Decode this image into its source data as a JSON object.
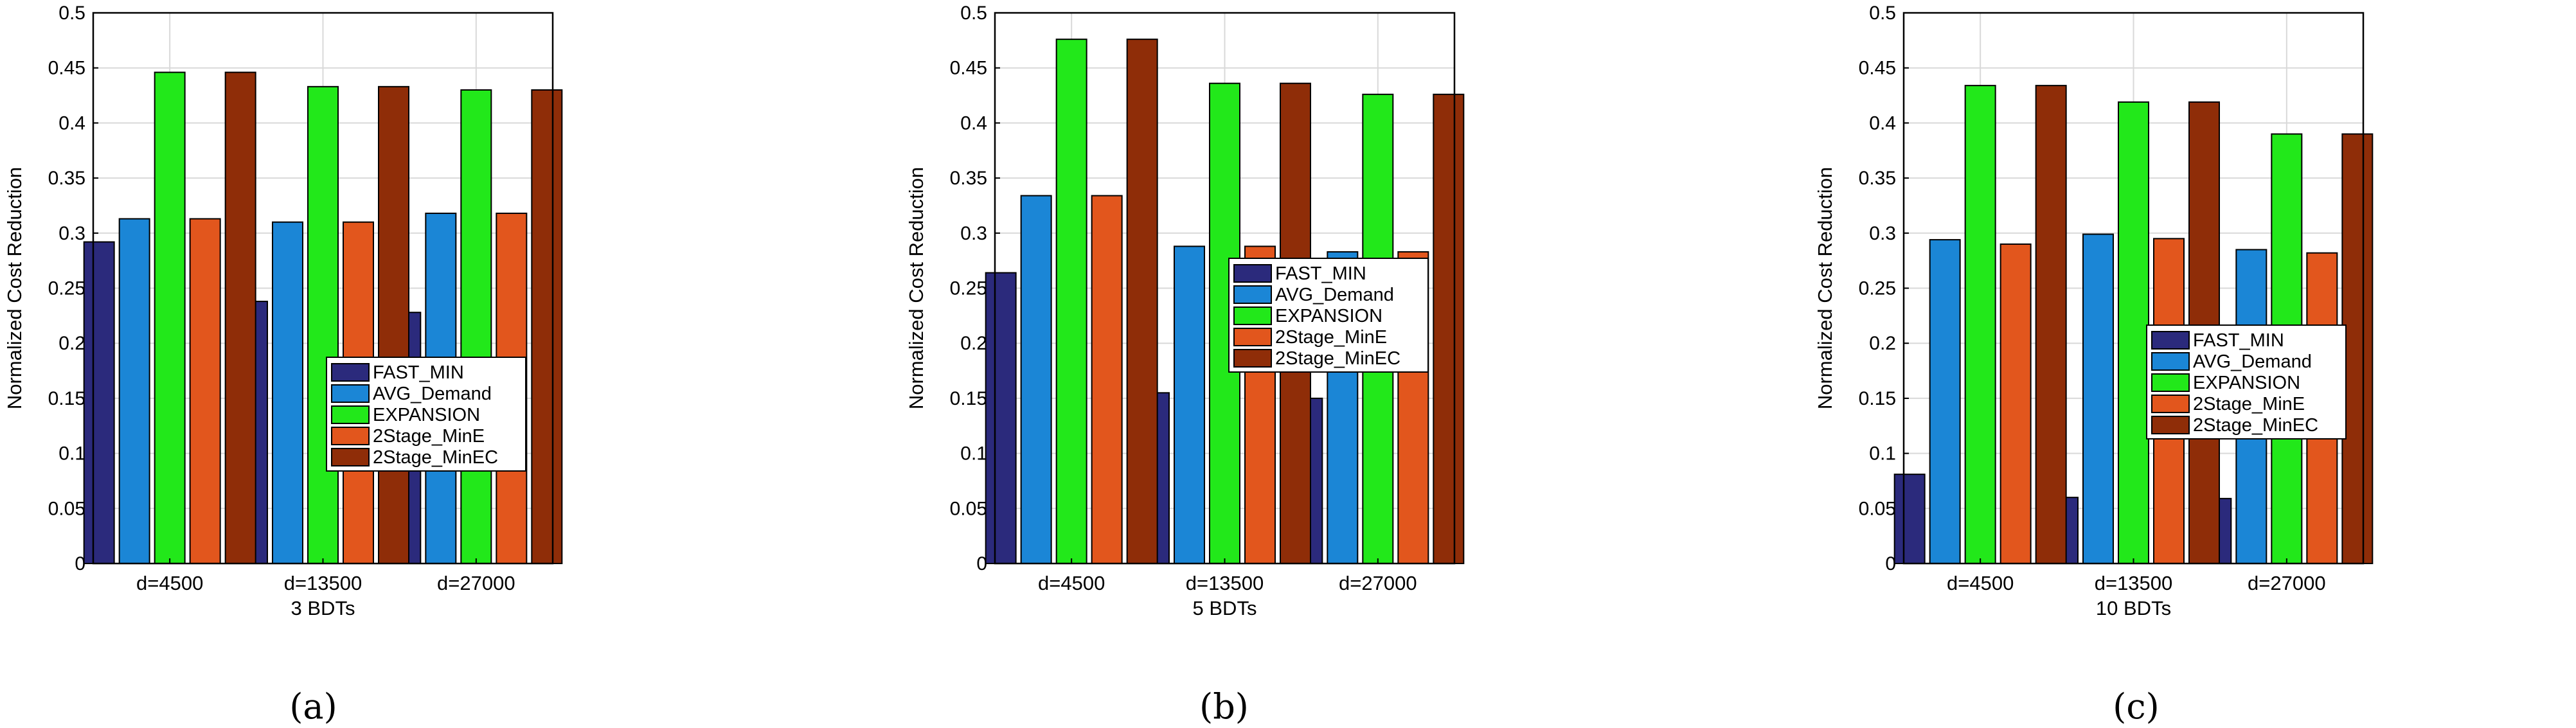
{
  "colors": {
    "FAST_MIN": "#2b2a7c",
    "AVG_Demand": "#1b86d6",
    "EXPANSION": "#22e81a",
    "2Stage_MinE": "#e2561d",
    "2Stage_MinEC": "#8f2d08",
    "grid": "#d9d9d9",
    "axis": "#000000"
  },
  "chart_data": [
    {
      "type": "bar",
      "panel_label": "(a)",
      "ylabel": "Normalized Cost Reduction",
      "xlabel": "3 BDTs",
      "categories": [
        "d=4500",
        "d=13500",
        "d=27000"
      ],
      "ylim": [
        0,
        0.5
      ],
      "yticks": [
        "0",
        "0.05",
        "0.1",
        "0.15",
        "0.2",
        "0.25",
        "0.3",
        "0.35",
        "0.4",
        "0.45",
        "0.5"
      ],
      "grid": true,
      "legend_position": "center",
      "series": [
        {
          "name": "FAST_MIN",
          "values": [
            0.292,
            0.238,
            0.228
          ]
        },
        {
          "name": "AVG_Demand",
          "values": [
            0.313,
            0.31,
            0.318
          ]
        },
        {
          "name": "EXPANSION",
          "values": [
            0.446,
            0.433,
            0.43
          ]
        },
        {
          "name": "2Stage_MinE",
          "values": [
            0.313,
            0.31,
            0.318
          ]
        },
        {
          "name": "2Stage_MinEC",
          "values": [
            0.446,
            0.433,
            0.43
          ]
        }
      ]
    },
    {
      "type": "bar",
      "panel_label": "(b)",
      "ylabel": "Normalized Cost Reduction",
      "xlabel": "5 BDTs",
      "categories": [
        "d=4500",
        "d=13500",
        "d=27000"
      ],
      "ylim": [
        0,
        0.5
      ],
      "yticks": [
        "0",
        "0.05",
        "0.1",
        "0.15",
        "0.2",
        "0.25",
        "0.3",
        "0.35",
        "0.4",
        "0.45",
        "0.5"
      ],
      "grid": true,
      "legend_position": "center",
      "series": [
        {
          "name": "FAST_MIN",
          "values": [
            0.264,
            0.155,
            0.15
          ]
        },
        {
          "name": "AVG_Demand",
          "values": [
            0.334,
            0.288,
            0.283
          ]
        },
        {
          "name": "EXPANSION",
          "values": [
            0.476,
            0.436,
            0.426
          ]
        },
        {
          "name": "2Stage_MinE",
          "values": [
            0.334,
            0.288,
            0.283
          ]
        },
        {
          "name": "2Stage_MinEC",
          "values": [
            0.476,
            0.436,
            0.426
          ]
        }
      ]
    },
    {
      "type": "bar",
      "panel_label": "(c)",
      "ylabel": "Normalized Cost Reduction",
      "xlabel": "10 BDTs",
      "categories": [
        "d=4500",
        "d=13500",
        "d=27000"
      ],
      "ylim": [
        0,
        0.5
      ],
      "yticks": [
        "0",
        "0.05",
        "0.1",
        "0.15",
        "0.2",
        "0.25",
        "0.3",
        "0.35",
        "0.4",
        "0.45",
        "0.5"
      ],
      "grid": true,
      "legend_position": "center-left",
      "series": [
        {
          "name": "FAST_MIN",
          "values": [
            0.081,
            0.06,
            0.059
          ]
        },
        {
          "name": "AVG_Demand",
          "values": [
            0.294,
            0.299,
            0.285
          ]
        },
        {
          "name": "EXPANSION",
          "values": [
            0.434,
            0.419,
            0.39
          ]
        },
        {
          "name": "2Stage_MinE",
          "values": [
            0.29,
            0.295,
            0.282
          ]
        },
        {
          "name": "2Stage_MinEC",
          "values": [
            0.434,
            0.419,
            0.39
          ]
        }
      ]
    }
  ]
}
